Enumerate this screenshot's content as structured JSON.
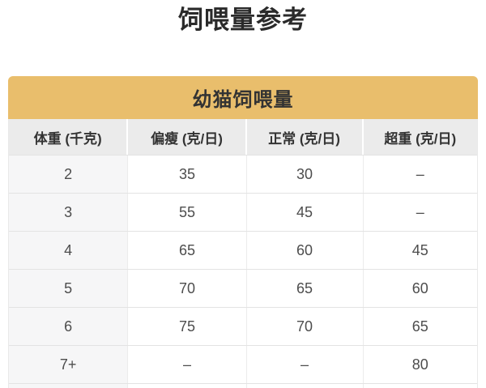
{
  "page": {
    "title": "饲喂量参考"
  },
  "chart_data": {
    "type": "table",
    "title": "幼猫饲喂量",
    "columns": [
      "体重 (千克)",
      "偏瘦 (克/日)",
      "正常 (克/日)",
      "超重 (克/日)"
    ],
    "rows": [
      [
        "2",
        "35",
        "30",
        "–"
      ],
      [
        "3",
        "55",
        "45",
        "–"
      ],
      [
        "4",
        "65",
        "60",
        "45"
      ],
      [
        "5",
        "70",
        "65",
        "60"
      ],
      [
        "6",
        "75",
        "70",
        "65"
      ],
      [
        "7+",
        "–",
        "–",
        "80"
      ]
    ]
  },
  "colors": {
    "band_gold": "#E9BE6C",
    "header_bg": "#EBEBEB",
    "first_column_bg": "#F6F6F7",
    "title_text": "#2a2a2a",
    "cell_text": "#4d4d4d"
  }
}
